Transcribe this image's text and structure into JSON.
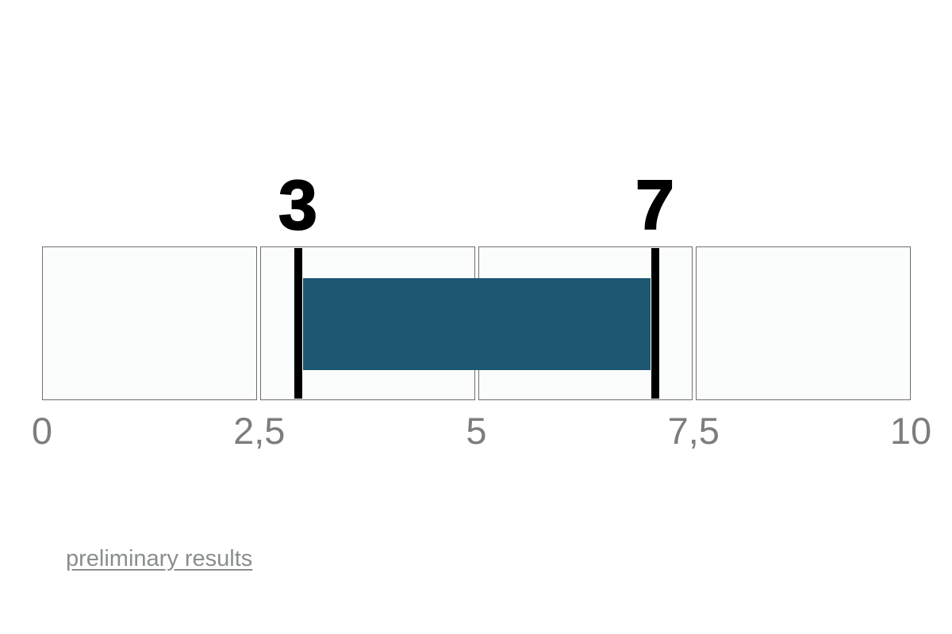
{
  "page": {
    "background": "#ffffff"
  },
  "chart_data": {
    "type": "bar",
    "subtype": "range",
    "orientation": "horizontal",
    "title": "",
    "axis": {
      "min": 0,
      "max": 10,
      "tick_labels": [
        "0",
        "2,5",
        "5",
        "7,5",
        "10"
      ],
      "tick_values": [
        0,
        2.5,
        5,
        7.5,
        10
      ],
      "decimal_separator": ",",
      "grid": "four segment boxes (quarters of the scale)"
    },
    "segments": 4,
    "range": {
      "start": 3,
      "end": 7
    },
    "range_start_label": "3",
    "range_end_label": "7",
    "colors": {
      "bar": "#1d5871",
      "marker": "#000000",
      "segment_fill": "#fbfdfc",
      "segment_border": "#6e6e6e",
      "tick_text": "#7d7d7d",
      "value_text": "#000000"
    }
  },
  "footer": {
    "link_label": "preliminary results",
    "link_color": "#8a8e8e"
  }
}
